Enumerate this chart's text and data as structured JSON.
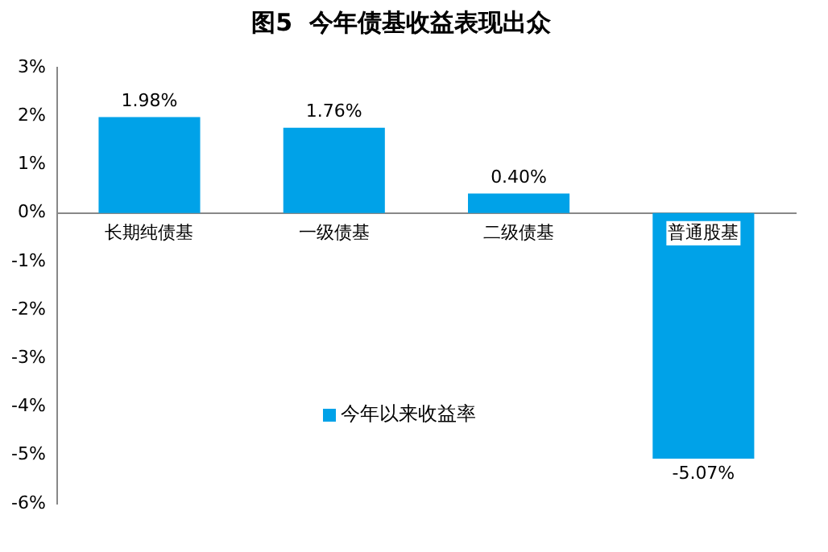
{
  "chart_data": {
    "type": "bar",
    "title": "图5  今年债基收益表现出众",
    "categories": [
      "长期纯债基",
      "一级债基",
      "二级债基",
      "普通股基"
    ],
    "series": [
      {
        "name": "今年以来收益率",
        "color": "#00a2e8",
        "values": [
          1.98,
          1.76,
          0.4,
          -5.07
        ]
      }
    ],
    "value_labels": [
      "1.98%",
      "1.76%",
      "0.40%",
      "-5.07%"
    ],
    "ylim": [
      -6,
      3
    ],
    "yticks": [
      {
        "value": -6,
        "label": "-6%"
      },
      {
        "value": -5,
        "label": "-5%"
      },
      {
        "value": -4,
        "label": "-4%"
      },
      {
        "value": -3,
        "label": "-3%"
      },
      {
        "value": -2,
        "label": "-2%"
      },
      {
        "value": -1,
        "label": "-1%"
      },
      {
        "value": 0,
        "label": "0%"
      },
      {
        "value": 1,
        "label": "1%"
      },
      {
        "value": 2,
        "label": "2%"
      },
      {
        "value": 3,
        "label": "3%"
      }
    ],
    "grid": false,
    "legend": "bottom"
  }
}
